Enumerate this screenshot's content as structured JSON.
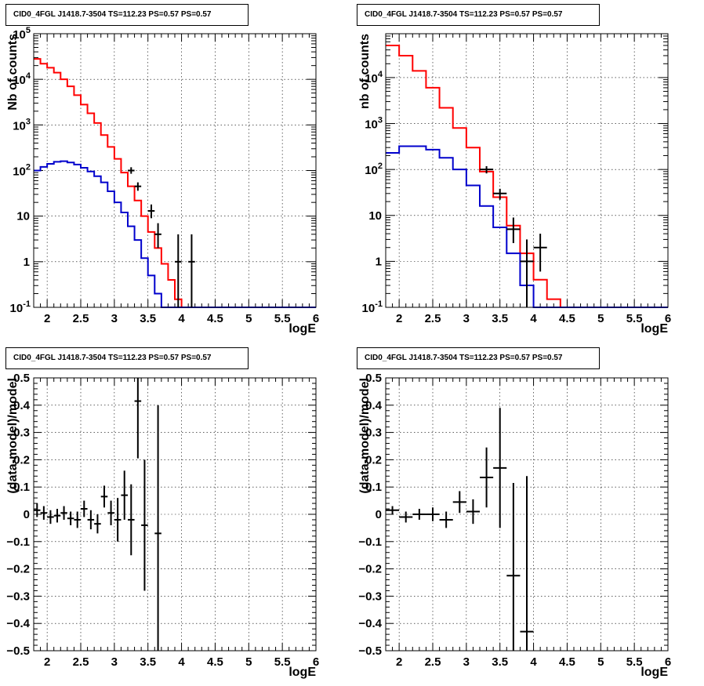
{
  "chart_data": [
    {
      "type": "line",
      "title": "CID0_4FGL J1418.7-3504 TS=112.23 PS=0.57 PS=0.57",
      "xlabel": "logE",
      "ylabel": "Nb of counts",
      "xlim": [
        1.8,
        6
      ],
      "ylim": [
        0.1,
        100000
      ],
      "yscale": "log",
      "grid": true,
      "x_ticks": [
        "2",
        "2.5",
        "3",
        "3.5",
        "4",
        "4.5",
        "5",
        "5.5",
        "6"
      ],
      "y_ticks": [
        "10^-1",
        "1",
        "10",
        "10^2",
        "10^3",
        "10^4",
        "10^5"
      ],
      "series": [
        {
          "style": "step",
          "color": "#ff0000",
          "bin_width": 0.1,
          "x_edges_start": 1.8,
          "values": [
            28000,
            22000,
            18000,
            14000,
            10000,
            7000,
            4500,
            2800,
            1800,
            1100,
            600,
            330,
            180,
            90,
            45,
            22,
            10,
            4.5,
            2,
            0.9,
            0.4,
            0.15,
            0.1,
            0.1,
            0.1,
            0.1,
            0.1,
            0.1,
            0.1,
            0.1,
            0.1,
            0.1,
            0.1,
            0.1,
            0.1,
            0.1,
            0.1,
            0.1,
            0.1,
            0.1,
            0.1,
            0.1
          ]
        },
        {
          "style": "step",
          "color": "#0000cc",
          "bin_width": 0.1,
          "x_edges_start": 1.8,
          "values": [
            100,
            120,
            140,
            155,
            160,
            150,
            135,
            115,
            95,
            75,
            55,
            35,
            20,
            12,
            6,
            3,
            1.2,
            0.5,
            0.2,
            0.1,
            0.1,
            0.1,
            0.1,
            0.1,
            0.1,
            0.1,
            0.1,
            0.1,
            0.1,
            0.1,
            0.1,
            0.1,
            0.1,
            0.1,
            0.1,
            0.1,
            0.1,
            0.1,
            0.1,
            0.1,
            0.1,
            0.1
          ]
        },
        {
          "style": "points",
          "color": "#000000",
          "xerr": 0.05,
          "x": [
            3.25,
            3.35,
            3.55,
            3.65,
            3.95,
            4.15
          ],
          "y": [
            100,
            45,
            13,
            4,
            1,
            1
          ],
          "ylo": [
            85,
            36,
            9,
            2,
            0.1,
            0.1
          ],
          "yhi": [
            118,
            55,
            18,
            7,
            4,
            4
          ]
        }
      ]
    },
    {
      "type": "line",
      "title": "CID0_4FGL J1418.7-3504 TS=112.23 PS=0.57 PS=0.57",
      "xlabel": "logE",
      "ylabel": "nb of counts",
      "xlim": [
        1.8,
        6
      ],
      "ylim": [
        0.1,
        90000
      ],
      "yscale": "log",
      "grid": true,
      "x_ticks": [
        "2",
        "2.5",
        "3",
        "3.5",
        "4",
        "4.5",
        "5",
        "5.5",
        "6"
      ],
      "y_ticks": [
        "10^-1",
        "1",
        "10",
        "10^2",
        "10^3",
        "10^4"
      ],
      "series": [
        {
          "style": "step",
          "color": "#ff0000",
          "bin_width": 0.2,
          "x_edges_start": 1.8,
          "values": [
            50000,
            30000,
            14000,
            6000,
            2200,
            800,
            300,
            90,
            25,
            6,
            1.5,
            0.4,
            0.15,
            0.1,
            0.1,
            0.1,
            0.1,
            0.1,
            0.1,
            0.1,
            0.1
          ]
        },
        {
          "style": "step",
          "color": "#0000cc",
          "bin_width": 0.2,
          "x_edges_start": 1.8,
          "values": [
            230,
            320,
            320,
            270,
            180,
            100,
            45,
            16,
            5.5,
            1.5,
            0.3,
            0.1,
            0.1,
            0.1,
            0.1,
            0.1,
            0.1,
            0.1,
            0.1,
            0.1,
            0.1
          ]
        },
        {
          "style": "points",
          "color": "#000000",
          "xerr": 0.1,
          "x": [
            3.3,
            3.5,
            3.7,
            3.9,
            4.1
          ],
          "y": [
            100,
            30,
            5,
            1,
            2
          ],
          "ylo": [
            82,
            22,
            2.5,
            0.1,
            0.6
          ],
          "yhi": [
            118,
            38,
            9,
            3,
            4
          ]
        }
      ]
    },
    {
      "type": "scatter",
      "title": "CID0_4FGL J1418.7-3504 TS=112.23 PS=0.57 PS=0.57",
      "xlabel": "logE",
      "ylabel": "(data-model)/model",
      "xlim": [
        1.8,
        6
      ],
      "ylim": [
        -0.5,
        0.5
      ],
      "grid": true,
      "x_ticks": [
        "2",
        "2.5",
        "3",
        "3.5",
        "4",
        "4.5",
        "5",
        "5.5",
        "6"
      ],
      "y_ticks": [
        "-0.5",
        "-0.4",
        "-0.3",
        "-0.2",
        "-0.1",
        "0",
        "0.1",
        "0.2",
        "0.3",
        "0.4",
        "0.5"
      ],
      "series": [
        {
          "style": "points",
          "color": "#000000",
          "xerr": 0.05,
          "x": [
            1.85,
            1.95,
            2.05,
            2.15,
            2.25,
            2.35,
            2.45,
            2.55,
            2.65,
            2.75,
            2.85,
            2.95,
            3.05,
            3.15,
            3.25,
            3.35,
            3.45,
            3.65
          ],
          "y": [
            0.015,
            0.005,
            -0.01,
            -0.005,
            0.005,
            -0.015,
            -0.02,
            0.02,
            -0.02,
            -0.035,
            0.065,
            0.005,
            -0.02,
            0.07,
            -0.02,
            0.415,
            -0.04,
            -0.07
          ],
          "err": [
            0.025,
            0.025,
            0.025,
            0.025,
            0.025,
            0.025,
            0.03,
            0.03,
            0.035,
            0.035,
            0.04,
            0.045,
            0.08,
            0.09,
            0.13,
            0.21,
            0.24,
            0.47
          ]
        }
      ]
    },
    {
      "type": "scatter",
      "title": "CID0_4FGL J1418.7-3504 TS=112.23 PS=0.57 PS=0.57",
      "xlabel": "logE",
      "ylabel": "(data-model)/model",
      "xlim": [
        1.8,
        6
      ],
      "ylim": [
        -0.5,
        0.5
      ],
      "grid": true,
      "x_ticks": [
        "2",
        "2.5",
        "3",
        "3.5",
        "4",
        "4.5",
        "5",
        "5.5",
        "6"
      ],
      "y_ticks": [
        "-0.5",
        "-0.4",
        "-0.3",
        "-0.2",
        "-0.1",
        "0",
        "0.1",
        "0.2",
        "0.3",
        "0.4",
        "0.5"
      ],
      "series": [
        {
          "style": "points",
          "color": "#000000",
          "xerr": 0.1,
          "x": [
            1.9,
            2.1,
            2.3,
            2.5,
            2.7,
            2.9,
            3.1,
            3.3,
            3.5,
            3.7,
            3.9
          ],
          "y": [
            0.015,
            -0.01,
            0,
            0,
            -0.02,
            0.045,
            0.01,
            0.135,
            0.17,
            -0.225,
            -0.43
          ],
          "err": [
            0.015,
            0.02,
            0.02,
            0.025,
            0.03,
            0.04,
            0.045,
            0.11,
            0.22,
            0.34,
            0.57
          ]
        }
      ]
    }
  ]
}
